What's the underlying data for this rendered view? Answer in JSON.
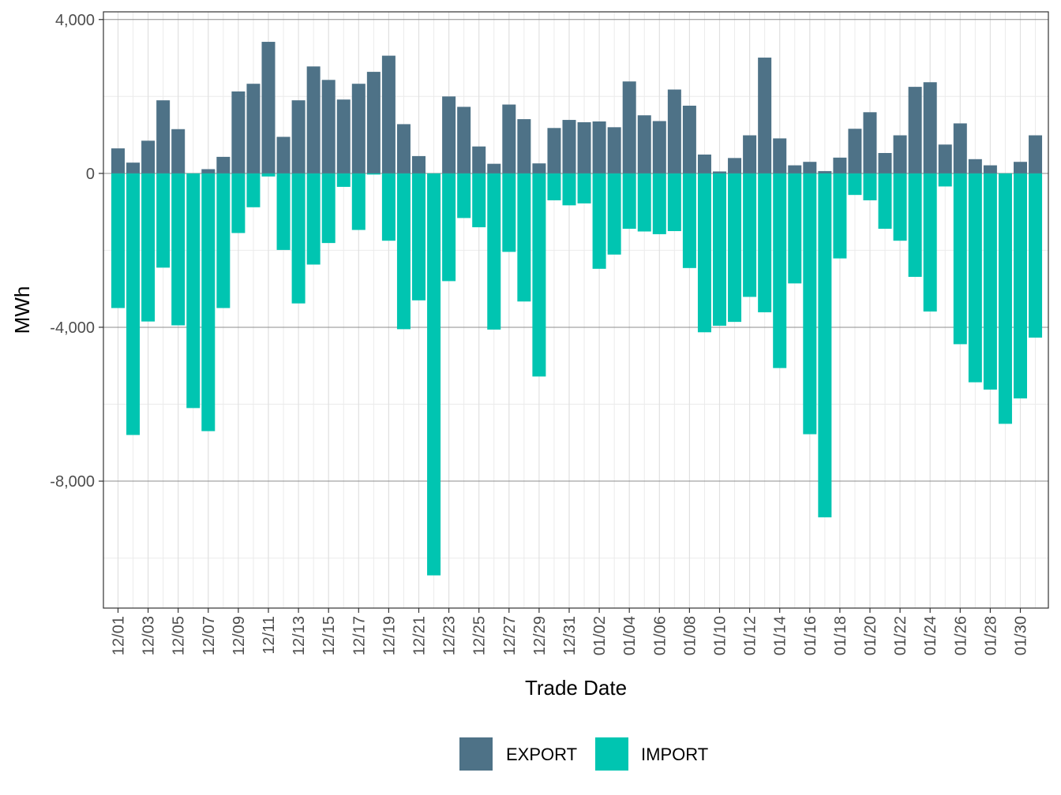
{
  "chart_data": {
    "type": "bar",
    "stacked": "diverging",
    "xlabel": "Trade Date",
    "ylabel": "MWh",
    "ylim": [
      -11300,
      4200
    ],
    "y_ticks": [
      4000,
      0,
      -4000,
      -8000
    ],
    "y_tick_labels": [
      "4,000",
      "0",
      "-4,000",
      "-8,000"
    ],
    "legend_position": "bottom",
    "categories": [
      "12/01",
      "12/02",
      "12/03",
      "12/04",
      "12/05",
      "12/06",
      "12/07",
      "12/08",
      "12/09",
      "12/10",
      "12/11",
      "12/12",
      "12/13",
      "12/14",
      "12/15",
      "12/16",
      "12/17",
      "12/18",
      "12/19",
      "12/20",
      "12/21",
      "12/22",
      "12/23",
      "12/24",
      "12/25",
      "12/26",
      "12/27",
      "12/28",
      "12/29",
      "12/30",
      "12/31",
      "01/01",
      "01/02",
      "01/03",
      "01/04",
      "01/05",
      "01/06",
      "01/07",
      "01/08",
      "01/09",
      "01/10",
      "01/11",
      "01/12",
      "01/13",
      "01/14",
      "01/15",
      "01/16",
      "01/17",
      "01/18",
      "01/19",
      "01/20",
      "01/21",
      "01/22",
      "01/23",
      "01/24",
      "01/25",
      "01/26",
      "01/27",
      "01/28",
      "01/29",
      "01/30",
      "01/31"
    ],
    "x_tick_labels": [
      "12/01",
      "12/03",
      "12/05",
      "12/07",
      "12/09",
      "12/11",
      "12/13",
      "12/15",
      "12/17",
      "12/19",
      "12/21",
      "12/23",
      "12/25",
      "12/27",
      "12/29",
      "12/31",
      "01/02",
      "01/04",
      "01/06",
      "01/08",
      "01/10",
      "01/12",
      "01/14",
      "01/16",
      "01/18",
      "01/20",
      "01/22",
      "01/24",
      "01/26",
      "01/28",
      "01/30"
    ],
    "series": [
      {
        "name": "EXPORT",
        "color": "#4e7287",
        "values": [
          650,
          280,
          850,
          1900,
          1150,
          0,
          110,
          430,
          2130,
          2330,
          3420,
          950,
          1900,
          2780,
          2430,
          1920,
          2330,
          2640,
          3060,
          1280,
          450,
          0,
          2000,
          1730,
          700,
          250,
          1790,
          1410,
          260,
          1180,
          1390,
          1330,
          1350,
          1200,
          2390,
          1510,
          1360,
          2180,
          1760,
          490,
          50,
          400,
          990,
          3010,
          910,
          210,
          300,
          60,
          410,
          1160,
          1590,
          530,
          990,
          2250,
          2370,
          750,
          1300,
          370,
          210,
          0,
          300,
          990
        ]
      },
      {
        "name": "IMPORT",
        "color": "#00c5b1",
        "values": [
          -3500,
          -6800,
          -3850,
          -2450,
          -3950,
          -6100,
          -6700,
          -3500,
          -1550,
          -880,
          -80,
          -1990,
          -3380,
          -2370,
          -1810,
          -350,
          -1470,
          -30,
          -1750,
          -4050,
          -3300,
          -10450,
          -2800,
          -1160,
          -1400,
          -4060,
          -2040,
          -3330,
          -5280,
          -700,
          -830,
          -780,
          -2480,
          -2110,
          -1440,
          -1510,
          -1580,
          -1500,
          -2460,
          -4130,
          -3960,
          -3860,
          -3210,
          -3610,
          -5060,
          -2860,
          -6780,
          -8940,
          -2210,
          -560,
          -700,
          -1440,
          -1750,
          -2690,
          -3590,
          -340,
          -4440,
          -5430,
          -5620,
          -6510,
          -5850,
          -4270
        ]
      }
    ]
  }
}
